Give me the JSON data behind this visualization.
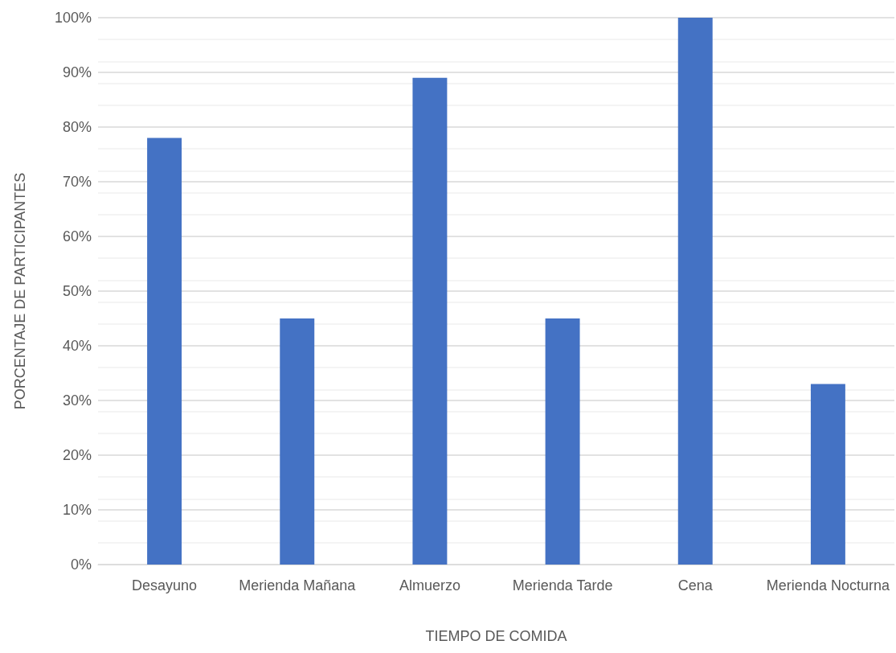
{
  "chart_data": {
    "type": "bar",
    "xlabel": "TIEMPO DE COMIDA",
    "ylabel": "PORCENTAJE DE PARTICIPANTES",
    "categories": [
      "Desayuno",
      "Merienda Mañana",
      "Almuerzo",
      "Merienda Tarde",
      "Cena",
      "Merienda Nocturna"
    ],
    "values": [
      78,
      45,
      89,
      45,
      100,
      33
    ],
    "color": "#4472c4",
    "ylim": [
      0,
      100
    ],
    "yticks": [
      {
        "value": 0,
        "label": "0%"
      },
      {
        "value": 10,
        "label": "10%"
      },
      {
        "value": 20,
        "label": "20%"
      },
      {
        "value": 30,
        "label": "30%"
      },
      {
        "value": 40,
        "label": "40%"
      },
      {
        "value": 50,
        "label": "50%"
      },
      {
        "value": 60,
        "label": "60%"
      },
      {
        "value": 70,
        "label": "70%"
      },
      {
        "value": 80,
        "label": "80%"
      },
      {
        "value": 90,
        "label": "90%"
      },
      {
        "value": 100,
        "label": "100%"
      }
    ],
    "grid": true
  }
}
